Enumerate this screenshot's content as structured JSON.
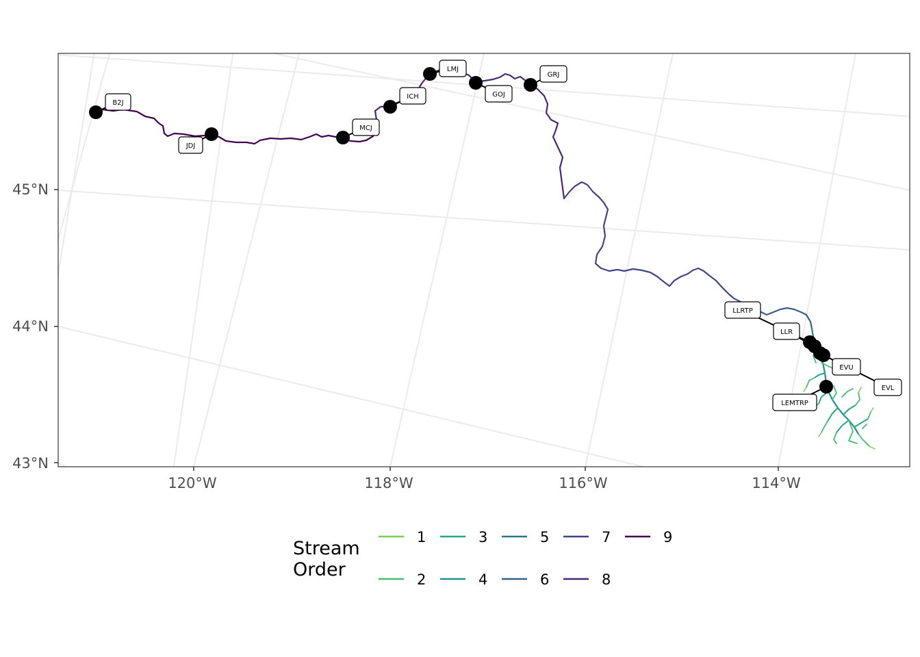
{
  "map": {
    "axis_labels": {
      "y": [
        "45°N",
        "44°N",
        "43°N"
      ],
      "x": [
        "120°W",
        "118°W",
        "116°W",
        "114°W"
      ]
    },
    "grid": true
  },
  "sites": [
    {
      "id": "B2J",
      "lon": -121.0,
      "lat": 45.62
    },
    {
      "id": "JDJ",
      "lon": -119.8,
      "lat": 45.52
    },
    {
      "id": "MCJ",
      "lon": -118.45,
      "lat": 45.47
    },
    {
      "id": "ICH",
      "lon": -118.0,
      "lat": 45.75
    },
    {
      "id": "LMJ",
      "lon": -117.6,
      "lat": 46.02
    },
    {
      "id": "GOJ",
      "lon": -117.1,
      "lat": 45.98
    },
    {
      "id": "GRJ",
      "lon": -116.5,
      "lat": 45.96
    },
    {
      "id": "LLRTP",
      "lon": -113.7,
      "lat": 43.97
    },
    {
      "id": "LLR",
      "lon": -113.6,
      "lat": 43.94
    },
    {
      "id": "EVU",
      "lon": -113.55,
      "lat": 43.88
    },
    {
      "id": "EVL",
      "lon": -113.5,
      "lat": 43.86
    },
    {
      "id": "LEMTRP",
      "lon": -113.47,
      "lat": 43.65
    }
  ],
  "legend": {
    "title_line1": "Stream",
    "title_line2": "Order",
    "items": [
      {
        "label": "1",
        "color": "#7AD151"
      },
      {
        "label": "2",
        "color": "#44BF70"
      },
      {
        "label": "3",
        "color": "#22A884"
      },
      {
        "label": "4",
        "color": "#21918C"
      },
      {
        "label": "5",
        "color": "#2A788E"
      },
      {
        "label": "6",
        "color": "#355F8D"
      },
      {
        "label": "7",
        "color": "#414487"
      },
      {
        "label": "8",
        "color": "#482576"
      },
      {
        "label": "9",
        "color": "#440154"
      }
    ]
  }
}
